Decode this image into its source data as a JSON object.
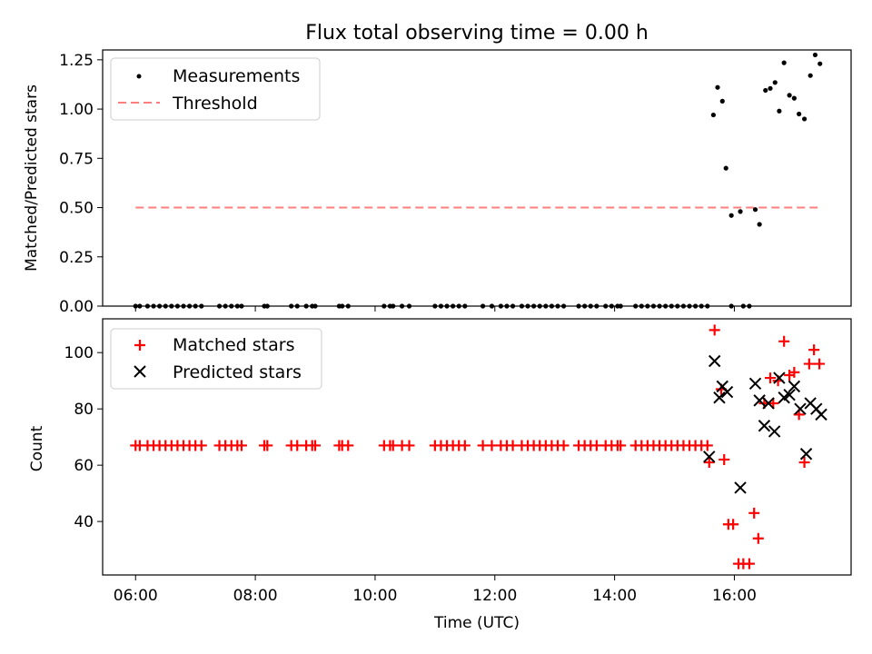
{
  "chart_data": [
    {
      "type": "scatter",
      "title": "Flux total observing time = 0.00 h",
      "ylabel": "Matched/Predicted stars",
      "xlabel": "",
      "ylim": [
        0,
        1.3
      ],
      "yticks": [
        0.0,
        0.25,
        0.5,
        0.75,
        1.0,
        1.25
      ],
      "ytick_labels": [
        "0.00",
        "0.25",
        "0.50",
        "0.75",
        "1.00",
        "1.25"
      ],
      "legend_position": "top-left",
      "series": [
        {
          "name": "Measurements",
          "color": "#000000",
          "marker": "dot",
          "points": [
            [
              6.0,
              0
            ],
            [
              6.07,
              0
            ],
            [
              6.2,
              0
            ],
            [
              6.3,
              0
            ],
            [
              6.4,
              0
            ],
            [
              6.5,
              0
            ],
            [
              6.6,
              0
            ],
            [
              6.7,
              0
            ],
            [
              6.8,
              0
            ],
            [
              6.9,
              0
            ],
            [
              7.0,
              0
            ],
            [
              7.1,
              0
            ],
            [
              7.4,
              0
            ],
            [
              7.5,
              0
            ],
            [
              7.6,
              0
            ],
            [
              7.7,
              0
            ],
            [
              7.77,
              0
            ],
            [
              8.15,
              0
            ],
            [
              8.2,
              0
            ],
            [
              8.6,
              0
            ],
            [
              8.7,
              0
            ],
            [
              8.85,
              0
            ],
            [
              8.95,
              0
            ],
            [
              9.0,
              0
            ],
            [
              9.4,
              0
            ],
            [
              9.45,
              0
            ],
            [
              9.55,
              0
            ],
            [
              10.15,
              0
            ],
            [
              10.25,
              0
            ],
            [
              10.3,
              0
            ],
            [
              10.45,
              0
            ],
            [
              10.57,
              0
            ],
            [
              11.0,
              0
            ],
            [
              11.1,
              0
            ],
            [
              11.2,
              0
            ],
            [
              11.3,
              0
            ],
            [
              11.4,
              0
            ],
            [
              11.5,
              0
            ],
            [
              11.8,
              0
            ],
            [
              11.95,
              0
            ],
            [
              12.1,
              0
            ],
            [
              12.2,
              0
            ],
            [
              12.3,
              0
            ],
            [
              12.45,
              0
            ],
            [
              12.55,
              0
            ],
            [
              12.65,
              0
            ],
            [
              12.75,
              0
            ],
            [
              12.85,
              0
            ],
            [
              12.95,
              0
            ],
            [
              13.05,
              0
            ],
            [
              13.15,
              0
            ],
            [
              13.4,
              0
            ],
            [
              13.5,
              0
            ],
            [
              13.6,
              0
            ],
            [
              13.7,
              0
            ],
            [
              13.85,
              0
            ],
            [
              13.95,
              0
            ],
            [
              14.05,
              0
            ],
            [
              14.1,
              0
            ],
            [
              14.35,
              0
            ],
            [
              14.45,
              0
            ],
            [
              14.55,
              0
            ],
            [
              14.65,
              0
            ],
            [
              14.75,
              0
            ],
            [
              14.85,
              0
            ],
            [
              14.95,
              0
            ],
            [
              15.05,
              0
            ],
            [
              15.15,
              0
            ],
            [
              15.25,
              0
            ],
            [
              15.35,
              0
            ],
            [
              15.45,
              0
            ],
            [
              15.55,
              0
            ],
            [
              15.95,
              0
            ],
            [
              16.15,
              0
            ],
            [
              16.25,
              0
            ],
            [
              15.65,
              0.97
            ],
            [
              15.72,
              1.11
            ],
            [
              15.8,
              1.04
            ],
            [
              15.86,
              0.7
            ],
            [
              15.95,
              0.46
            ],
            [
              16.1,
              0.48
            ],
            [
              16.35,
              0.49
            ],
            [
              16.42,
              0.415
            ],
            [
              16.52,
              1.095
            ],
            [
              16.6,
              1.105
            ],
            [
              16.68,
              1.135
            ],
            [
              16.75,
              0.99
            ],
            [
              16.83,
              1.235
            ],
            [
              16.92,
              1.07
            ],
            [
              17.0,
              1.055
            ],
            [
              17.08,
              0.975
            ],
            [
              17.17,
              0.95
            ],
            [
              17.27,
              1.17
            ],
            [
              17.35,
              1.275
            ],
            [
              17.43,
              1.23
            ]
          ]
        },
        {
          "name": "Threshold",
          "color": "#ff7f7f",
          "style": "dashed",
          "points": [
            [
              6.0,
              0.5
            ],
            [
              17.45,
              0.5
            ]
          ]
        }
      ]
    },
    {
      "type": "scatter",
      "title": "",
      "ylabel": "Count",
      "xlabel": "Time (UTC)",
      "xlim": [
        5.45,
        17.95
      ],
      "ylim": [
        21,
        112
      ],
      "yticks": [
        40,
        60,
        80,
        100
      ],
      "ytick_labels": [
        "40",
        "60",
        "80",
        "100"
      ],
      "xticks": [
        6,
        8,
        10,
        12,
        14,
        16
      ],
      "xtick_labels": [
        "06:00",
        "08:00",
        "10:00",
        "12:00",
        "14:00",
        "16:00"
      ],
      "legend_position": "top-left",
      "series": [
        {
          "name": "Matched stars",
          "color": "#ff0000",
          "marker": "plus",
          "points": [
            [
              6.0,
              67
            ],
            [
              6.07,
              67
            ],
            [
              6.2,
              67
            ],
            [
              6.3,
              67
            ],
            [
              6.4,
              67
            ],
            [
              6.5,
              67
            ],
            [
              6.6,
              67
            ],
            [
              6.7,
              67
            ],
            [
              6.8,
              67
            ],
            [
              6.9,
              67
            ],
            [
              7.0,
              67
            ],
            [
              7.1,
              67
            ],
            [
              7.4,
              67
            ],
            [
              7.5,
              67
            ],
            [
              7.6,
              67
            ],
            [
              7.7,
              67
            ],
            [
              7.77,
              67
            ],
            [
              8.15,
              67
            ],
            [
              8.2,
              67
            ],
            [
              8.6,
              67
            ],
            [
              8.7,
              67
            ],
            [
              8.85,
              67
            ],
            [
              8.95,
              67
            ],
            [
              9.0,
              67
            ],
            [
              9.4,
              67
            ],
            [
              9.45,
              67
            ],
            [
              9.55,
              67
            ],
            [
              10.15,
              67
            ],
            [
              10.25,
              67
            ],
            [
              10.3,
              67
            ],
            [
              10.45,
              67
            ],
            [
              10.57,
              67
            ],
            [
              11.0,
              67
            ],
            [
              11.1,
              67
            ],
            [
              11.2,
              67
            ],
            [
              11.3,
              67
            ],
            [
              11.4,
              67
            ],
            [
              11.5,
              67
            ],
            [
              11.8,
              67
            ],
            [
              11.95,
              67
            ],
            [
              12.1,
              67
            ],
            [
              12.2,
              67
            ],
            [
              12.3,
              67
            ],
            [
              12.45,
              67
            ],
            [
              12.55,
              67
            ],
            [
              12.65,
              67
            ],
            [
              12.75,
              67
            ],
            [
              12.85,
              67
            ],
            [
              12.95,
              67
            ],
            [
              13.05,
              67
            ],
            [
              13.15,
              67
            ],
            [
              13.4,
              67
            ],
            [
              13.5,
              67
            ],
            [
              13.6,
              67
            ],
            [
              13.7,
              67
            ],
            [
              13.85,
              67
            ],
            [
              13.95,
              67
            ],
            [
              14.05,
              67
            ],
            [
              14.1,
              67
            ],
            [
              14.35,
              67
            ],
            [
              14.45,
              67
            ],
            [
              14.55,
              67
            ],
            [
              14.65,
              67
            ],
            [
              14.75,
              67
            ],
            [
              14.85,
              67
            ],
            [
              14.95,
              67
            ],
            [
              15.05,
              67
            ],
            [
              15.15,
              67
            ],
            [
              15.25,
              67
            ],
            [
              15.35,
              67
            ],
            [
              15.45,
              67
            ],
            [
              15.55,
              67
            ],
            [
              15.58,
              61
            ],
            [
              15.67,
              108
            ],
            [
              15.78,
              87
            ],
            [
              15.83,
              62
            ],
            [
              15.9,
              39
            ],
            [
              15.98,
              39
            ],
            [
              16.07,
              25
            ],
            [
              16.15,
              25
            ],
            [
              16.25,
              25
            ],
            [
              16.33,
              43
            ],
            [
              16.4,
              34
            ],
            [
              16.5,
              82
            ],
            [
              16.6,
              91
            ],
            [
              16.65,
              82
            ],
            [
              16.73,
              90
            ],
            [
              16.83,
              104
            ],
            [
              16.92,
              92
            ],
            [
              17.0,
              93
            ],
            [
              17.08,
              78
            ],
            [
              17.17,
              61
            ],
            [
              17.25,
              96
            ],
            [
              17.33,
              101
            ],
            [
              17.42,
              96
            ]
          ]
        },
        {
          "name": "Predicted stars",
          "color": "#000000",
          "marker": "x",
          "points": [
            [
              15.58,
              63
            ],
            [
              15.67,
              97
            ],
            [
              15.75,
              84
            ],
            [
              15.8,
              88
            ],
            [
              15.88,
              86
            ],
            [
              16.1,
              52
            ],
            [
              16.35,
              89
            ],
            [
              16.42,
              83
            ],
            [
              16.5,
              74
            ],
            [
              16.57,
              82
            ],
            [
              16.67,
              72
            ],
            [
              16.75,
              91
            ],
            [
              16.83,
              84
            ],
            [
              16.92,
              85
            ],
            [
              17.0,
              88
            ],
            [
              17.1,
              80
            ],
            [
              17.2,
              64
            ],
            [
              17.27,
              82
            ],
            [
              17.37,
              80
            ],
            [
              17.45,
              78
            ]
          ]
        }
      ]
    }
  ]
}
